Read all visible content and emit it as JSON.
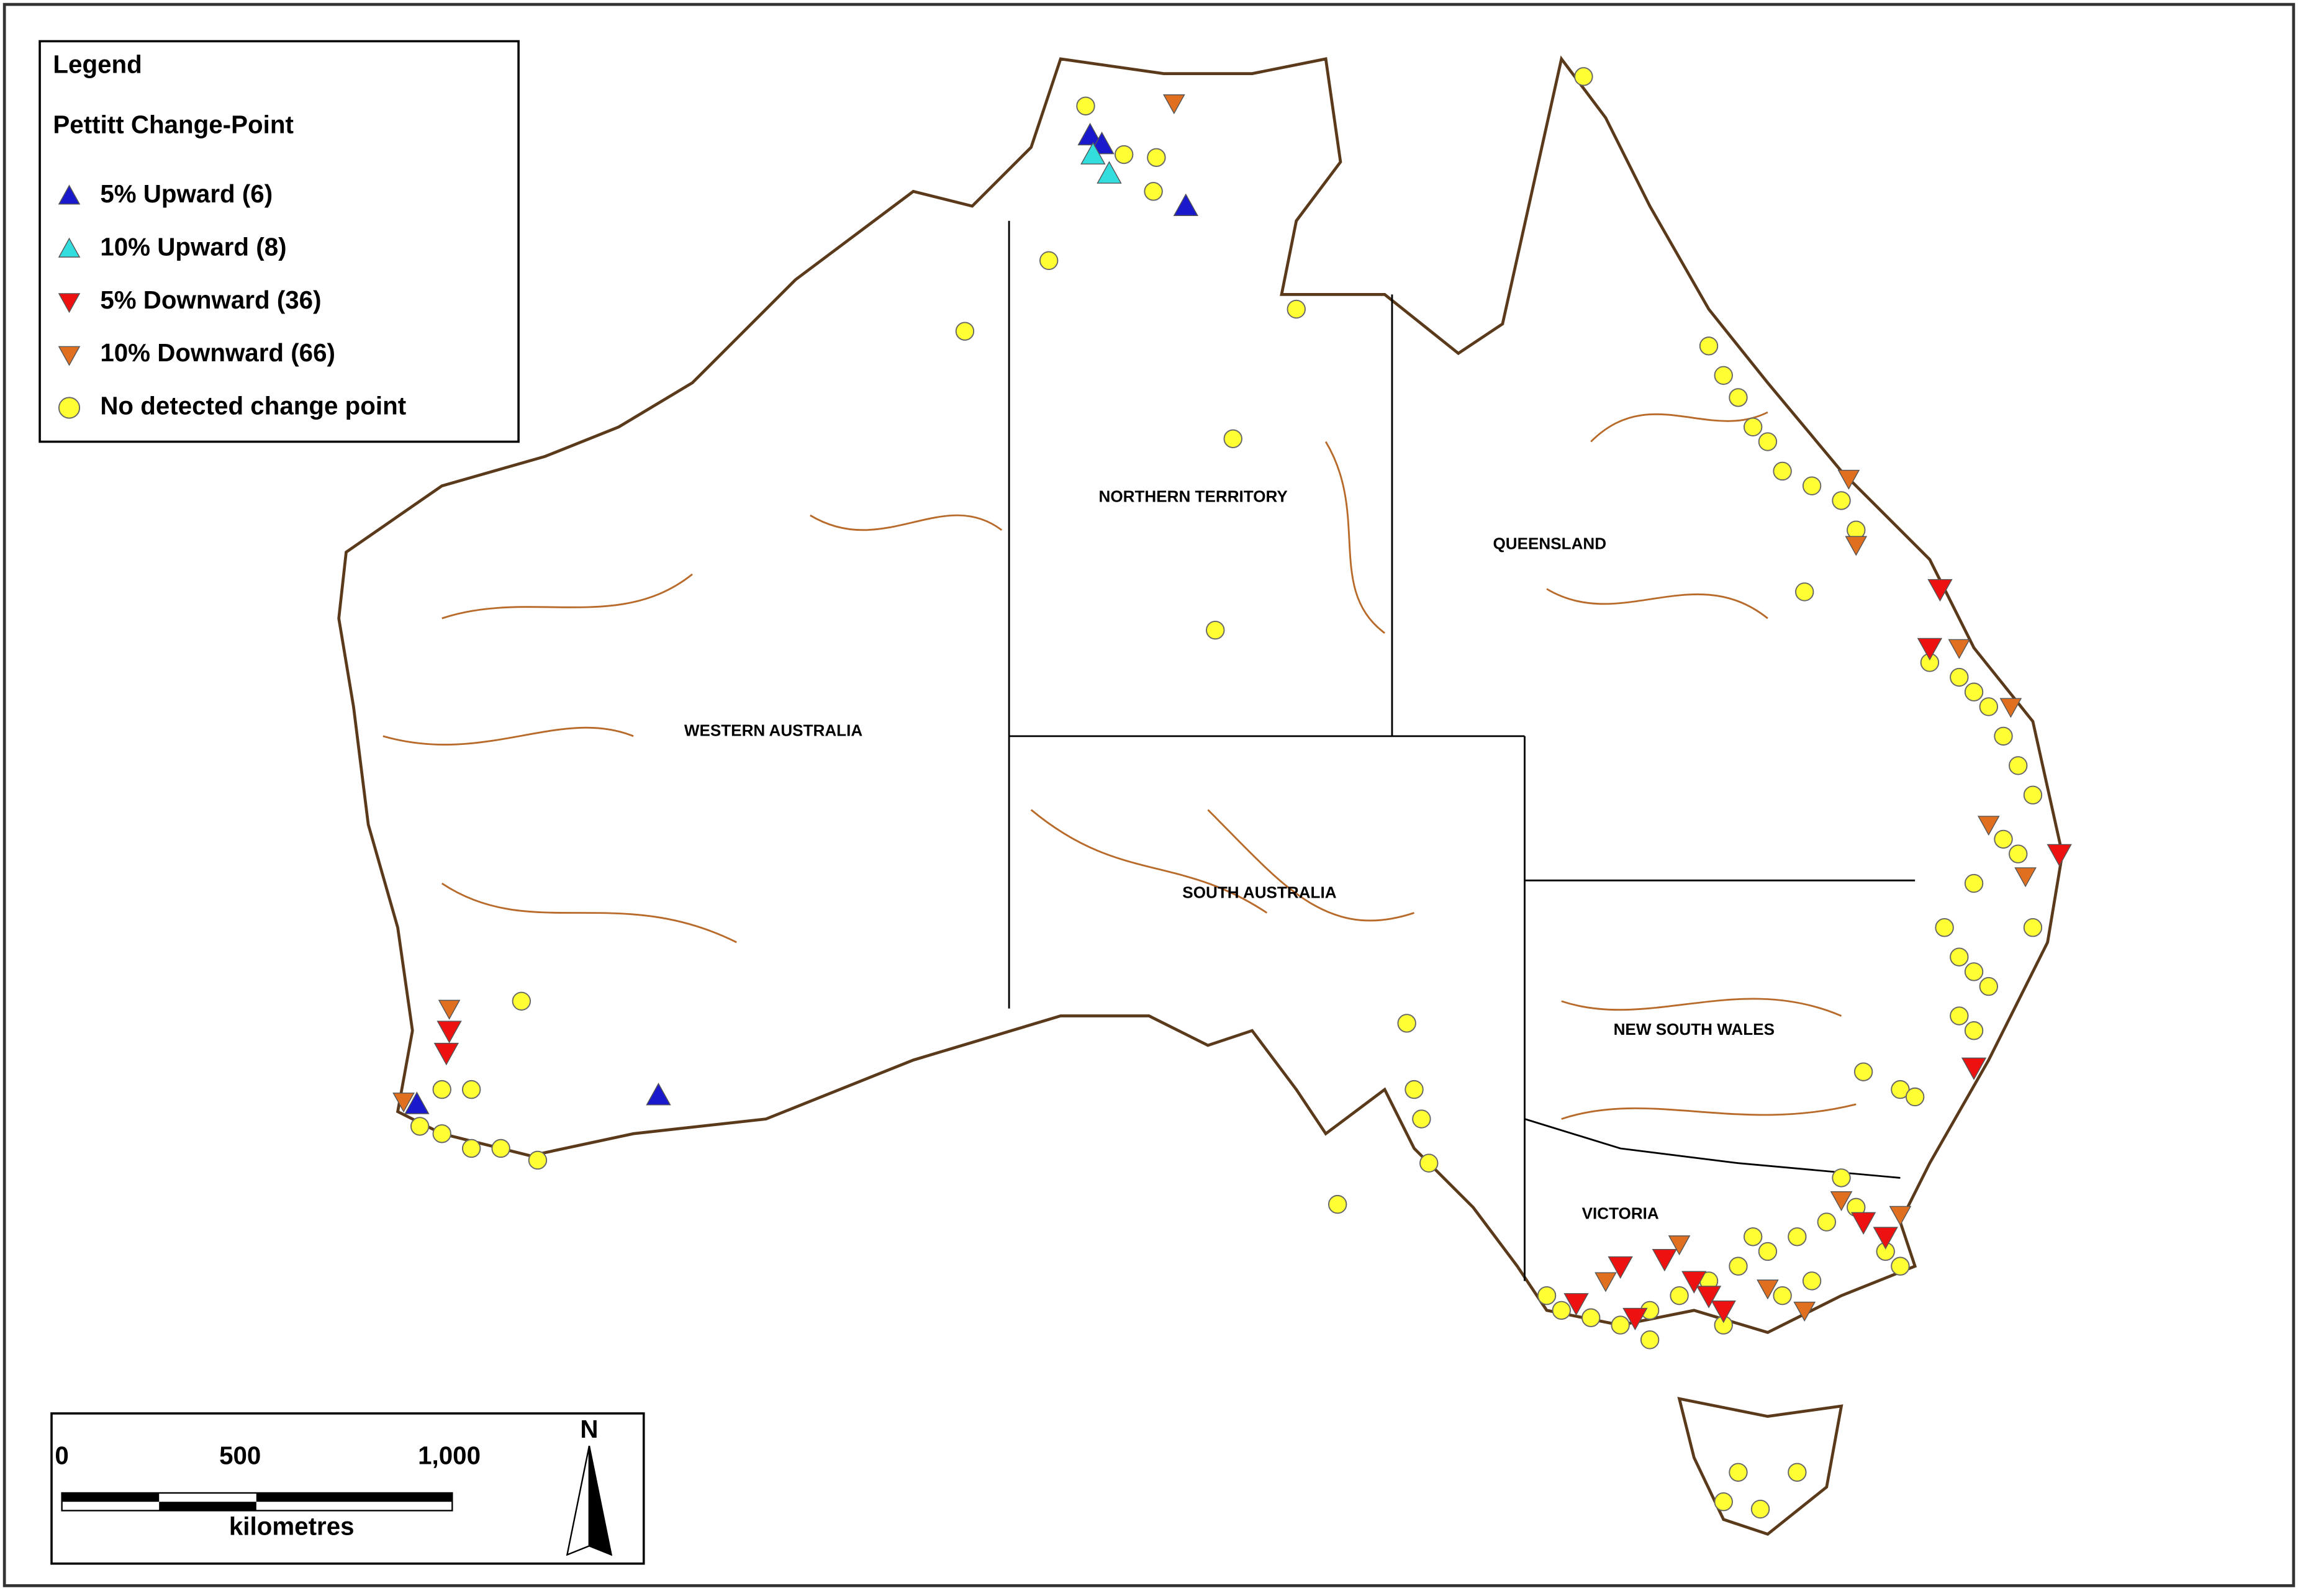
{
  "legend": {
    "title": "Legend",
    "subtitle": "Pettitt Change-Point",
    "entries": [
      "5% Upward (6)",
      "10% Upward (8)",
      "5% Downward (36)",
      "10% Downward (66)",
      "No detected change point"
    ]
  },
  "regions": [
    "NORTHERN TERRITORY",
    "QUEENSLAND",
    "WESTERN AUSTRALIA",
    "SOUTH AUSTRALIA",
    "NEW SOUTH WALES",
    "VICTORIA"
  ],
  "scale_bar": {
    "labels": [
      "0",
      "500",
      "1,000"
    ],
    "unit": "kilometres"
  },
  "north": "N"
}
